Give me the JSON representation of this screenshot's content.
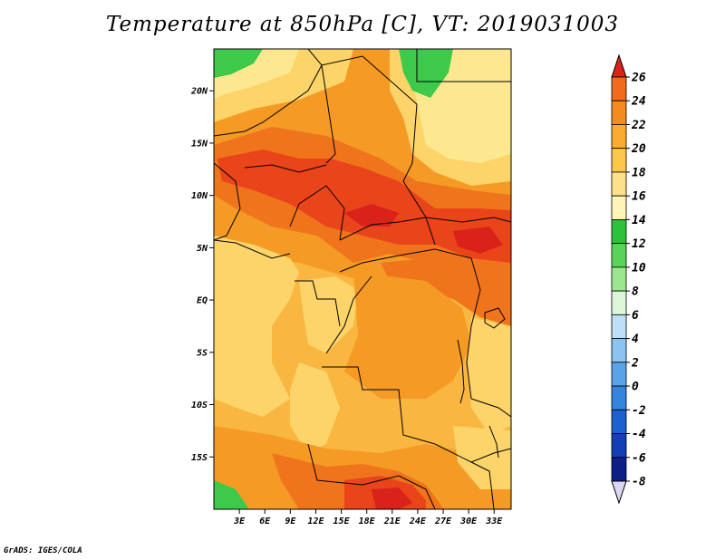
{
  "title": "Temperature at 850hPa [C], VT: 2019031003",
  "credit": "GrADS: IGES/COLA",
  "map": {
    "lon_range": [
      0,
      35
    ],
    "lat_range": [
      -20,
      24
    ],
    "lon_ticks": [
      {
        "value": 3,
        "label": "3E"
      },
      {
        "value": 6,
        "label": "6E"
      },
      {
        "value": 9,
        "label": "9E"
      },
      {
        "value": 12,
        "label": "12E"
      },
      {
        "value": 15,
        "label": "15E"
      },
      {
        "value": 18,
        "label": "18E"
      },
      {
        "value": 21,
        "label": "21E"
      },
      {
        "value": 24,
        "label": "24E"
      },
      {
        "value": 27,
        "label": "27E"
      },
      {
        "value": 30,
        "label": "30E"
      },
      {
        "value": 33,
        "label": "33E"
      }
    ],
    "lat_ticks": [
      {
        "value": 20,
        "label": "20N"
      },
      {
        "value": 15,
        "label": "15N"
      },
      {
        "value": 10,
        "label": "10N"
      },
      {
        "value": 5,
        "label": "5N"
      },
      {
        "value": 0,
        "label": "EQ"
      },
      {
        "value": -5,
        "label": "5S"
      },
      {
        "value": -10,
        "label": "10S"
      },
      {
        "value": -15,
        "label": "15S"
      }
    ]
  },
  "colorbar": {
    "levels": [
      {
        "label": "26",
        "color": "#e8441b"
      },
      {
        "label": "24",
        "color": "#f06b1d"
      },
      {
        "label": "22",
        "color": "#f48b1d"
      },
      {
        "label": "20",
        "color": "#f8ab2f"
      },
      {
        "label": "18",
        "color": "#fcc84b"
      },
      {
        "label": "16",
        "color": "#fde08a"
      },
      {
        "label": "14",
        "color": "#fef4b6"
      },
      {
        "label": "12",
        "color": "#2cc23b"
      },
      {
        "label": "10",
        "color": "#5ad35a"
      },
      {
        "label": "8",
        "color": "#9de690"
      },
      {
        "label": "6",
        "color": "#ddf6d9"
      },
      {
        "label": "4",
        "color": "#bde0f6"
      },
      {
        "label": "2",
        "color": "#8cc4ef"
      },
      {
        "label": "0",
        "color": "#5aa3e6"
      },
      {
        "label": "-2",
        "color": "#3485dd"
      },
      {
        "label": "-4",
        "color": "#1d60cf"
      },
      {
        "label": "-6",
        "color": "#133fb4"
      },
      {
        "label": "-8",
        "color": "#0b1f86"
      }
    ],
    "top_color": "#d9231a",
    "bottom_color": "#dcd8f4"
  },
  "colors": {
    "t14_16": "#fde890",
    "t16_18": "#fcd46a",
    "t18_20": "#f9b640",
    "t20_22": "#f59a24",
    "t22_24": "#f0741c",
    "t24_26": "#e9441a",
    "t26_plus": "#d9231a",
    "t10_14": "#3ec94a"
  }
}
